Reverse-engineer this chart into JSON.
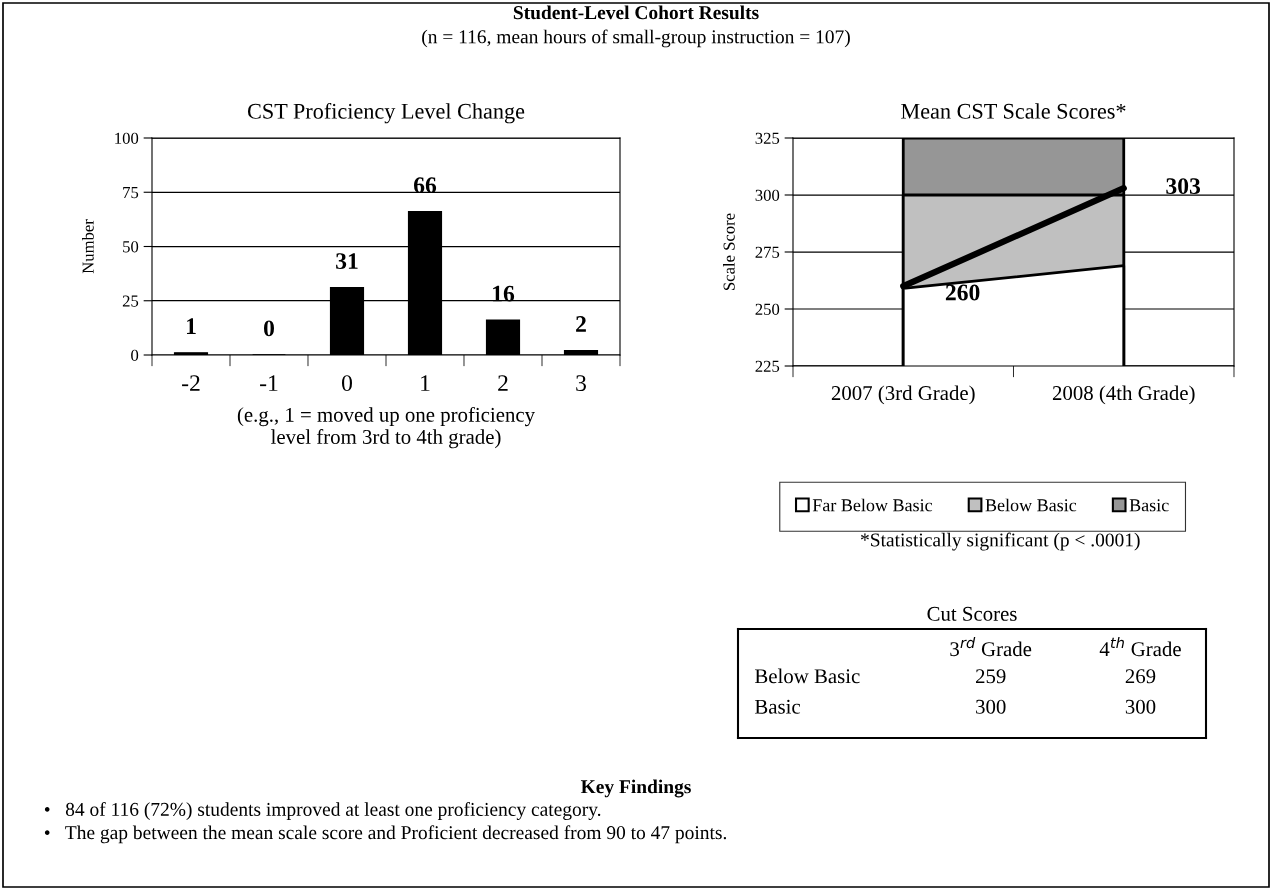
{
  "chart_data": [
    {
      "type": "other",
      "title": "Student-Level Cohort Results",
      "subtitle": "(n = 116, mean hours of small-group instruction = 107)"
    },
    {
      "type": "bar",
      "title": "CST Proficiency Level Change",
      "xlabel": "(e.g., 1 = moved up one proficiency\nlevel from 3rd to 4th grade)",
      "ylabel": "Number",
      "categories": [
        "-2",
        "-1",
        "0",
        "1",
        "2",
        "3"
      ],
      "values": [
        1,
        0,
        31,
        66,
        16,
        2
      ],
      "color": "#000000",
      "ylim": [
        0,
        100
      ],
      "yticks": [
        0,
        25,
        50,
        75,
        100
      ],
      "grid": "y",
      "data_labels": true
    },
    {
      "type": "area",
      "title": "Mean CST Scale Scores*",
      "ylabel": "Scale Score",
      "categories": [
        "2007 (3rd Grade)",
        "2008 (4th Grade)"
      ],
      "series": [
        {
          "name": "Far Below Basic",
          "color": "#ffffff",
          "values": [
            259,
            269
          ]
        },
        {
          "name": "Below Basic",
          "color": "#c0c0c0",
          "values": [
            300,
            300
          ]
        },
        {
          "name": "Basic",
          "color": "#969696",
          "values": [
            325,
            325
          ]
        },
        {
          "type": "line",
          "color": "#000000",
          "values": [
            260,
            303
          ],
          "value_labels": [
            "260",
            "303"
          ]
        }
      ],
      "ylim": [
        225,
        325
      ],
      "yticks": [
        225,
        250,
        275,
        300,
        325
      ],
      "grid": "y",
      "legend": "bottom",
      "annotations": [
        "*Statistically significant (p < .0001)"
      ]
    },
    {
      "type": "other",
      "title": "Cut Scores",
      "categories": [
        "3$^{rd}$ Grade",
        "4$^{th}$ Grade"
      ],
      "y_categories": [
        "Below Basic",
        "Basic"
      ],
      "cell_labels": [
        [
          "259",
          "269"
        ],
        [
          "300",
          "300"
        ]
      ]
    },
    {
      "type": "other",
      "title": "Key Findings",
      "annotations": [
        "•   84 of 116 (72%) students improved at least one proficiency category.",
        "•   The gap between the mean scale score and Proficient decreased from 90 to 47 points."
      ]
    }
  ]
}
